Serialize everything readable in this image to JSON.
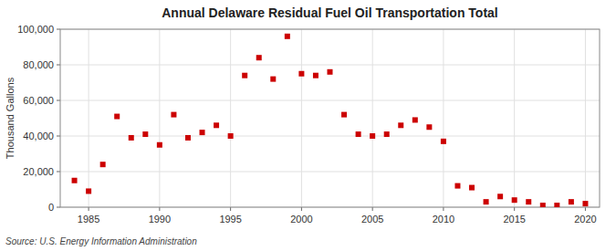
{
  "chart_data": {
    "type": "scatter",
    "title": "Annual Delaware Residual Fuel Oil Transportation Total",
    "ylabel": "Thousand Gallons",
    "annotations": [
      "Source: U.S. Energy Information Administration"
    ],
    "x": [
      1984,
      1985,
      1986,
      1987,
      1988,
      1989,
      1990,
      1991,
      1992,
      1993,
      1994,
      1995,
      1996,
      1997,
      1998,
      1999,
      2000,
      2001,
      2002,
      2003,
      2004,
      2005,
      2006,
      2007,
      2008,
      2009,
      2010,
      2011,
      2012,
      2013,
      2014,
      2015,
      2016,
      2017,
      2018,
      2019,
      2020
    ],
    "values": [
      15000,
      9000,
      24000,
      51000,
      39000,
      41000,
      35000,
      52000,
      39000,
      42000,
      46000,
      40000,
      74000,
      84000,
      72000,
      96000,
      75000,
      74000,
      76000,
      52000,
      41000,
      40000,
      41000,
      46000,
      49000,
      45000,
      37000,
      12000,
      11000,
      3000,
      6000,
      4000,
      3000,
      1000,
      1000,
      3000,
      2000
    ],
    "color": "#cc0000",
    "marker": "square",
    "xlim": [
      1983,
      2021
    ],
    "ylim": [
      0,
      100000
    ],
    "xticks": [
      1985,
      1990,
      1995,
      2000,
      2005,
      2010,
      2015,
      2020
    ],
    "yticks": [
      0,
      {
        "value": 20000,
        "label": "20,000"
      },
      {
        "value": 40000,
        "label": "40,000"
      },
      {
        "value": 60000,
        "label": "60,000"
      },
      {
        "value": 80000,
        "label": "80,000"
      },
      {
        "value": 100000,
        "label": "100,000"
      }
    ],
    "grid": true
  }
}
